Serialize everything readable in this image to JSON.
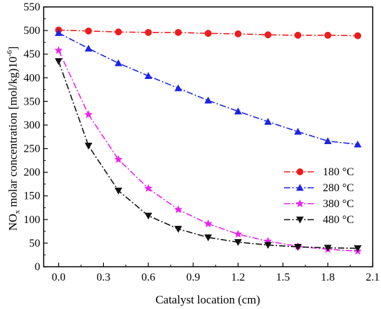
{
  "chart_data": {
    "type": "line",
    "xlabel": "Catalyst location (cm)",
    "ylabel": {
      "prefix": "NO",
      "subscript": "x",
      "main": " molar concentration [mol/kg)10",
      "superscript": "-6",
      "suffix": "]"
    },
    "xlim": [
      -0.1,
      2.1
    ],
    "ylim": [
      0,
      550
    ],
    "xticks": [
      "0.0",
      "0.3",
      "0.6",
      "0.9",
      "1.2",
      "1.5",
      "1.8",
      "2.1"
    ],
    "yticks": [
      "0",
      "50",
      "100",
      "150",
      "200",
      "250",
      "300",
      "350",
      "400",
      "450",
      "500",
      "550"
    ],
    "x": [
      0.0,
      0.2,
      0.4,
      0.6,
      0.8,
      1.0,
      1.2,
      1.4,
      1.6,
      1.8,
      2.0
    ],
    "grid": false,
    "legend_position": "right",
    "series": [
      {
        "name": "180 °C",
        "color": "#ee1c1c",
        "marker": "circle",
        "values": [
          501,
          499,
          497,
          496,
          496,
          494,
          493,
          491,
          490,
          490,
          489
        ]
      },
      {
        "name": "280 °C",
        "color": "#1c24e6",
        "marker": "triangle-up",
        "values": [
          495,
          462,
          431,
          404,
          378,
          352,
          329,
          307,
          286,
          266,
          259
        ]
      },
      {
        "name": "380 °C",
        "color": "#ee22ee",
        "marker": "star",
        "values": [
          458,
          322,
          227,
          166,
          121,
          91,
          69,
          54,
          43,
          37,
          33
        ]
      },
      {
        "name": "480 °C",
        "color": "#111111",
        "marker": "triangle-down",
        "values": [
          435,
          256,
          161,
          108,
          80,
          62,
          52,
          46,
          42,
          40,
          39
        ]
      }
    ]
  }
}
